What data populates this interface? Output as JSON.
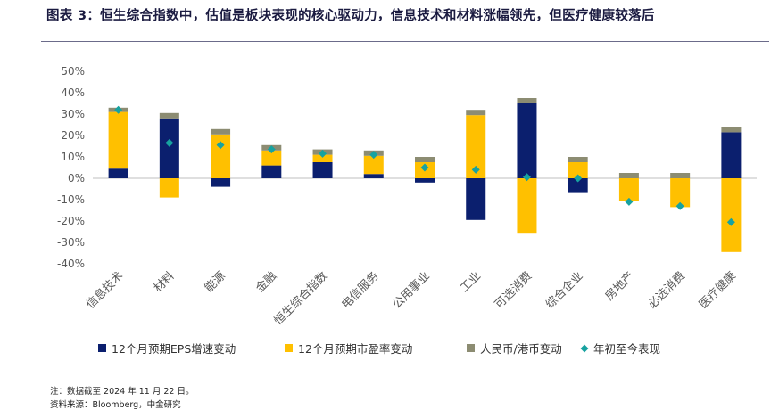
{
  "title": "图表 3：恒生综合指数中，估值是板块表现的核心驱动力，信息技术和材料涨幅领先，但医疗健康较落后",
  "note": "注：数据截至 2024 年 11 月 22 日。",
  "source": "资料来源：Bloomberg，中金研究",
  "colors": {
    "eps": "#0b1f6e",
    "pe": "#ffc000",
    "fx": "#8c8c72",
    "ytd": "#17a2a0",
    "axis_text": "#595959",
    "grid": "#d9d9d9"
  },
  "chart_data": {
    "type": "bar",
    "stacked": true,
    "categories": [
      "信息技术",
      "材料",
      "能源",
      "金融",
      "恒生综合指数",
      "电信服务",
      "公用事业",
      "工业",
      "可选消费",
      "综合企业",
      "房地产",
      "必选消费",
      "医疗健康"
    ],
    "ylim": [
      -40,
      50
    ],
    "yticks": [
      50,
      40,
      30,
      20,
      10,
      0,
      -10,
      -20,
      -30,
      -40
    ],
    "ytick_labels": [
      "50%",
      "40%",
      "30%",
      "20%",
      "10%",
      "0%",
      "-10%",
      "-20%",
      "-30%",
      "-40%"
    ],
    "grid": false,
    "legend_position": "bottom",
    "series": [
      {
        "name": "12个月预期EPS增速变动",
        "kind": "bar",
        "color_key": "eps",
        "values": [
          4.5,
          28,
          -4,
          6,
          7.5,
          2,
          -2,
          -19.5,
          35,
          -6.5,
          0,
          0,
          21.5
        ]
      },
      {
        "name": "12个月预期市盈率变动",
        "kind": "bar",
        "color_key": "pe",
        "values": [
          26.5,
          -9,
          20.5,
          7,
          3.5,
          8.5,
          7.5,
          29.5,
          -25.5,
          7.5,
          -10.5,
          -13.5,
          -34.5
        ]
      },
      {
        "name": "人民币/港币变动",
        "kind": "bar",
        "color_key": "fx",
        "values": [
          2,
          2.5,
          2.5,
          2.5,
          2.5,
          2.5,
          2.5,
          2.5,
          2.5,
          2.5,
          2.5,
          2.5,
          2.5
        ]
      },
      {
        "name": "年初至今表现",
        "kind": "marker",
        "color_key": "ytd",
        "values": [
          32,
          16.5,
          15.5,
          13.5,
          11.5,
          11,
          5,
          4,
          0.5,
          0,
          -11,
          -13,
          -20.5
        ]
      }
    ]
  }
}
